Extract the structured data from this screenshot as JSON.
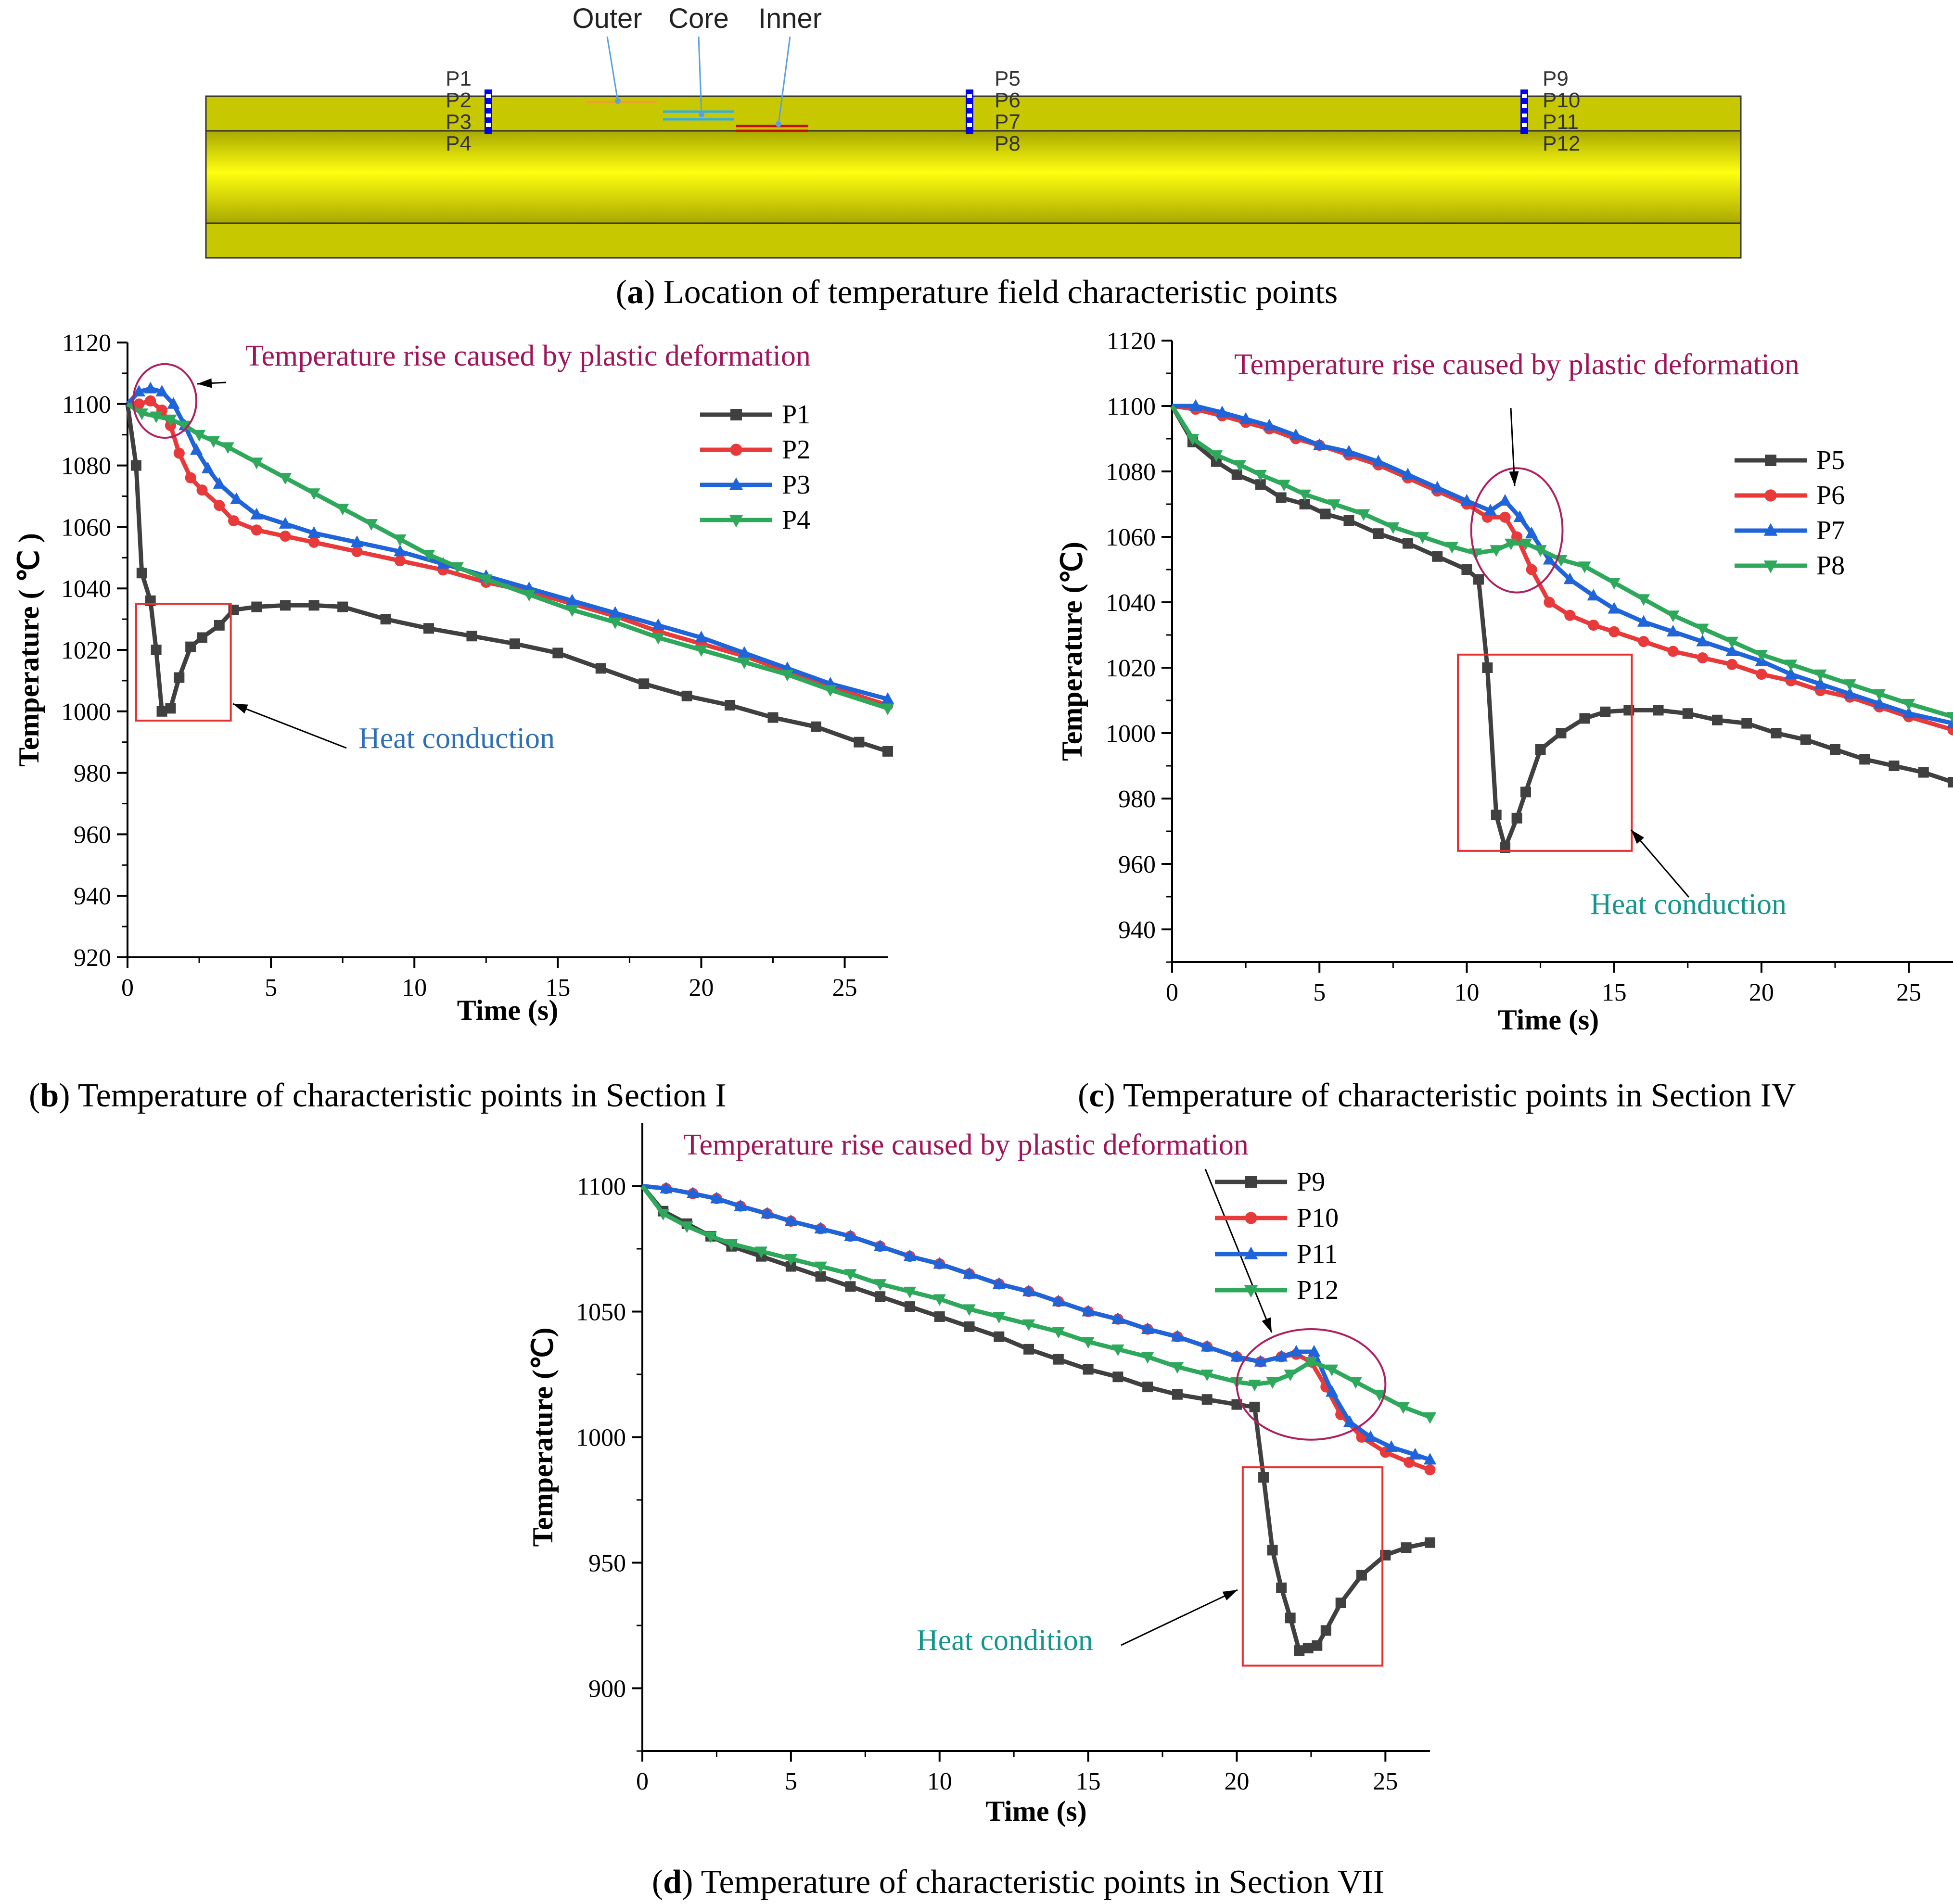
{
  "panel_a": {
    "caption_letter": "a",
    "caption_text": "Location of temperature field characteristic points",
    "layer_labels": [
      "Outer",
      "Core",
      "Inner"
    ],
    "points": [
      {
        "group": 0,
        "labels": [
          "P1",
          "P2",
          "P3",
          "P4"
        ]
      },
      {
        "group": 1,
        "labels": [
          "P5",
          "P6",
          "P7",
          "P8"
        ]
      },
      {
        "group": 2,
        "labels": [
          "P9",
          "P10",
          "P11",
          "P12"
        ]
      }
    ],
    "colors": {
      "billet_light": "#fefe10",
      "billet_dark": "#a9a900",
      "outer": "#f0a030",
      "core": "#30b0e0",
      "inner": "#c01010",
      "point": "#0000ee"
    }
  },
  "chart_data": [
    {
      "id": "b",
      "type": "line",
      "caption_letter": "b",
      "caption_text": "Temperature of characteristic points in Section I",
      "xlabel": "Time (s)",
      "ylabel": "Temperature ( ℃ )",
      "xlim": [
        0,
        26.5
      ],
      "ylim": [
        920,
        1120
      ],
      "xticks": [
        0,
        5,
        10,
        15,
        20,
        25
      ],
      "yticks": [
        920,
        940,
        960,
        980,
        1000,
        1020,
        1040,
        1060,
        1080,
        1100,
        1120
      ],
      "grid": false,
      "legend_position": "top-right",
      "series": [
        {
          "name": "P1",
          "color": "#404040",
          "marker": "square",
          "x": [
            0,
            0.3,
            0.5,
            0.8,
            1.0,
            1.2,
            1.5,
            1.8,
            2.2,
            2.6,
            3.2,
            3.7,
            4.5,
            5.5,
            6.5,
            7.5,
            9,
            10.5,
            12,
            13.5,
            15,
            16.5,
            18,
            19.5,
            21,
            22.5,
            24,
            25.5,
            26.5
          ],
          "y": [
            1100,
            1080,
            1045,
            1036,
            1020,
            1000,
            1001,
            1011,
            1021,
            1024,
            1028,
            1033,
            1034,
            1034.5,
            1034.5,
            1034,
            1030,
            1027,
            1024.5,
            1022,
            1019,
            1014,
            1009,
            1005,
            1002,
            998,
            995,
            990,
            987
          ]
        },
        {
          "name": "P2",
          "color": "#e83a3a",
          "marker": "circle",
          "x": [
            0,
            0.4,
            0.8,
            1.2,
            1.5,
            1.8,
            2.2,
            2.6,
            3.2,
            3.7,
            4.5,
            5.5,
            6.5,
            8,
            9.5,
            11,
            12.5,
            14,
            15.5,
            17,
            18.5,
            20,
            21.5,
            23,
            24.5,
            26.5
          ],
          "y": [
            1100,
            1100,
            1101,
            1098,
            1093,
            1084,
            1076,
            1072,
            1067,
            1062,
            1059,
            1057,
            1055,
            1052,
            1049,
            1046,
            1042,
            1039,
            1035,
            1031,
            1026,
            1022,
            1018,
            1013,
            1008,
            1002
          ]
        },
        {
          "name": "P3",
          "color": "#1f64d9",
          "marker": "triangle-up",
          "x": [
            0,
            0.4,
            0.8,
            1.2,
            1.6,
            2.0,
            2.4,
            2.8,
            3.2,
            3.8,
            4.5,
            5.5,
            6.5,
            8,
            9.5,
            11,
            12.5,
            14,
            15.5,
            17,
            18.5,
            20,
            21.5,
            23,
            24.5,
            26.5
          ],
          "y": [
            1100,
            1104,
            1105,
            1104,
            1100,
            1093,
            1085,
            1079,
            1074,
            1069,
            1064,
            1061,
            1058,
            1055,
            1052,
            1048,
            1044,
            1040,
            1036,
            1032,
            1028,
            1024,
            1019,
            1014,
            1009,
            1004
          ]
        },
        {
          "name": "P4",
          "color": "#2ea85a",
          "marker": "triangle-down",
          "x": [
            0,
            0.5,
            1.0,
            1.5,
            2.0,
            2.5,
            3.0,
            3.5,
            4.5,
            5.5,
            6.5,
            7.5,
            8.5,
            9.5,
            10.5,
            11.5,
            12.5,
            14,
            15.5,
            17,
            18.5,
            20,
            21.5,
            23,
            24.5,
            26.5
          ],
          "y": [
            1100,
            1097,
            1096,
            1095,
            1093,
            1090,
            1088,
            1086,
            1081,
            1076,
            1071,
            1066,
            1061,
            1056,
            1051,
            1047,
            1043,
            1038,
            1033,
            1029,
            1024,
            1020,
            1016,
            1012,
            1007,
            1001
          ]
        }
      ],
      "annotations": [
        {
          "text": "Temperature rise caused by plastic deformation",
          "color": "#a0145a",
          "shape": "ellipse",
          "cx": 1.3,
          "cy": 1101,
          "rx": 1.1,
          "ry": 12
        },
        {
          "text": "Heat conduction",
          "color": "#2f6fb8",
          "shape": "rect",
          "x0": 0.3,
          "x1": 3.6,
          "y0": 997,
          "y1": 1035
        }
      ]
    },
    {
      "id": "c",
      "type": "line",
      "caption_letter": "c",
      "caption_text": "Temperature of characteristic points in Section IV",
      "xlabel": "Time (s)",
      "ylabel": "Temperature (℃)",
      "xlim": [
        0,
        26.5
      ],
      "ylim": [
        930,
        1120
      ],
      "xticks": [
        0,
        5,
        10,
        15,
        20,
        25
      ],
      "yticks": [
        940,
        960,
        980,
        1000,
        1020,
        1040,
        1060,
        1080,
        1100,
        1120
      ],
      "grid": false,
      "legend_position": "top-right",
      "series": [
        {
          "name": "P5",
          "color": "#404040",
          "marker": "square",
          "x": [
            0,
            0.7,
            1.5,
            2.2,
            3,
            3.7,
            4.5,
            5.2,
            6,
            7,
            8,
            9,
            10,
            10.4,
            10.7,
            11.0,
            11.3,
            11.7,
            12,
            12.5,
            13.2,
            14,
            14.7,
            15.5,
            16.5,
            17.5,
            18.5,
            19.5,
            20.5,
            21.5,
            22.5,
            23.5,
            24.5,
            25.5,
            26.5
          ],
          "y": [
            1100,
            1089,
            1083,
            1079,
            1076,
            1072,
            1070,
            1067,
            1065,
            1061,
            1058,
            1054,
            1050,
            1047,
            1020,
            975,
            965,
            974,
            982,
            995,
            1000,
            1004.5,
            1006.5,
            1007,
            1007,
            1006,
            1004,
            1003,
            1000,
            998,
            995,
            992,
            990,
            988,
            985
          ]
        },
        {
          "name": "P6",
          "color": "#e83a3a",
          "marker": "circle",
          "x": [
            0,
            0.8,
            1.7,
            2.5,
            3.3,
            4.2,
            5,
            6,
            7,
            8,
            9,
            10,
            10.7,
            11.3,
            11.7,
            12.2,
            12.8,
            13.5,
            14.3,
            15,
            16,
            17,
            18,
            19,
            20,
            21,
            22,
            23,
            24,
            25,
            26.5
          ],
          "y": [
            1100,
            1099,
            1097,
            1095,
            1093,
            1090,
            1088,
            1085,
            1082,
            1078,
            1074,
            1070,
            1066,
            1066,
            1060,
            1050,
            1040,
            1036,
            1033,
            1031,
            1028,
            1025,
            1023,
            1021,
            1018,
            1016,
            1013,
            1011,
            1008,
            1005,
            1001
          ]
        },
        {
          "name": "P7",
          "color": "#1f64d9",
          "marker": "triangle-up",
          "x": [
            0,
            0.8,
            1.7,
            2.5,
            3.3,
            4.2,
            5,
            6,
            7,
            8,
            9,
            10,
            10.8,
            11.3,
            11.8,
            12.2,
            12.8,
            13.5,
            14.3,
            15,
            16,
            17,
            18,
            19,
            20,
            21,
            22,
            23,
            24,
            25,
            26.5
          ],
          "y": [
            1100,
            1100,
            1098,
            1096,
            1094,
            1091,
            1088,
            1086,
            1083,
            1079,
            1075,
            1071,
            1068,
            1071,
            1066,
            1061,
            1053,
            1047,
            1042,
            1038,
            1034,
            1031,
            1028,
            1025,
            1022,
            1018,
            1015,
            1012,
            1009,
            1006,
            1003
          ]
        },
        {
          "name": "P8",
          "color": "#2ea85a",
          "marker": "triangle-down",
          "x": [
            0,
            0.7,
            1.5,
            2.3,
            3,
            3.8,
            4.5,
            5.5,
            6.5,
            7.5,
            8.5,
            9.5,
            10.3,
            11,
            11.5,
            12,
            12.5,
            13.2,
            14,
            15,
            16,
            17,
            18,
            19,
            20,
            21,
            22,
            23,
            24,
            25,
            26.5
          ],
          "y": [
            1100,
            1090,
            1085,
            1082,
            1079,
            1076,
            1073,
            1070,
            1067,
            1063,
            1060,
            1057,
            1055,
            1056,
            1058,
            1058,
            1056,
            1053,
            1051,
            1046,
            1041,
            1036,
            1032,
            1028,
            1024,
            1021,
            1018,
            1015,
            1012,
            1009,
            1005
          ]
        }
      ],
      "annotations": [
        {
          "text": "Temperature rise caused by plastic deformation",
          "color": "#a0145a",
          "shape": "ellipse",
          "cx": 11.7,
          "cy": 1062,
          "rx": 1.55,
          "ry": 19
        },
        {
          "text": "Heat conduction",
          "color": "#14968a",
          "shape": "rect",
          "x0": 9.7,
          "x1": 15.6,
          "y0": 964,
          "y1": 1024
        }
      ]
    },
    {
      "id": "d",
      "type": "line",
      "caption_letter": "d",
      "caption_text": "Temperature of characteristic points in Section VII",
      "xlabel": "Time (s)",
      "ylabel": "Temperature (℃)",
      "xlim": [
        0,
        26.5
      ],
      "ylim": [
        875,
        1125
      ],
      "xticks": [
        0,
        5,
        10,
        15,
        20,
        25
      ],
      "yticks": [
        900,
        950,
        1000,
        1050,
        1100
      ],
      "grid": false,
      "legend_position": "top-right",
      "series": [
        {
          "name": "P9",
          "color": "#404040",
          "marker": "square",
          "x": [
            0,
            0.7,
            1.5,
            2.3,
            3,
            4,
            5,
            6,
            7,
            8,
            9,
            10,
            11,
            12,
            13,
            14,
            15,
            16,
            17,
            18,
            19,
            20,
            20.6,
            20.9,
            21.2,
            21.5,
            21.8,
            22.1,
            22.4,
            22.7,
            23.0,
            23.5,
            24.2,
            25,
            25.7,
            26.5
          ],
          "y": [
            1100,
            1090,
            1085,
            1080,
            1076,
            1072,
            1068,
            1064,
            1060,
            1056,
            1052,
            1048,
            1044,
            1040,
            1035,
            1031,
            1027,
            1024,
            1020,
            1017,
            1015,
            1013,
            1012,
            984,
            955,
            940,
            928,
            915,
            916,
            917,
            923,
            934,
            945,
            953,
            956,
            958
          ]
        },
        {
          "name": "P10",
          "color": "#e83a3a",
          "marker": "circle",
          "x": [
            0,
            0.8,
            1.7,
            2.5,
            3.3,
            4.2,
            5,
            6,
            7,
            8,
            9,
            10,
            11,
            12,
            13,
            14,
            15,
            16,
            17,
            18,
            19,
            20,
            20.8,
            21.5,
            22,
            22.5,
            23,
            23.5,
            24.2,
            25,
            25.8,
            26.5
          ],
          "y": [
            1100,
            1099,
            1097,
            1095,
            1092,
            1089,
            1086,
            1083,
            1080,
            1076,
            1072,
            1069,
            1065,
            1061,
            1058,
            1054,
            1050,
            1047,
            1043,
            1040,
            1036,
            1032,
            1030,
            1032,
            1033,
            1030,
            1020,
            1009,
            1000,
            994,
            990,
            987
          ]
        },
        {
          "name": "P11",
          "color": "#1f64d9",
          "marker": "triangle-up",
          "x": [
            0,
            0.8,
            1.7,
            2.5,
            3.3,
            4.2,
            5,
            6,
            7,
            8,
            9,
            10,
            11,
            12,
            13,
            14,
            15,
            16,
            17,
            18,
            19,
            20,
            20.8,
            21.5,
            22,
            22.6,
            23.2,
            23.8,
            24.5,
            25.2,
            26,
            26.5
          ],
          "y": [
            1100,
            1099,
            1097,
            1095,
            1092,
            1089,
            1086,
            1083,
            1080,
            1076,
            1072,
            1069,
            1065,
            1061,
            1058,
            1054,
            1050,
            1047,
            1043,
            1040,
            1036,
            1032,
            1030,
            1032,
            1034,
            1034,
            1018,
            1006,
            1000,
            996,
            993,
            991
          ]
        },
        {
          "name": "P12",
          "color": "#2ea85a",
          "marker": "triangle-down",
          "x": [
            0,
            0.7,
            1.5,
            2.3,
            3,
            4,
            5,
            6,
            7,
            8,
            9,
            10,
            11,
            12,
            13,
            14,
            15,
            16,
            17,
            18,
            19,
            20,
            20.6,
            21.2,
            21.8,
            22.5,
            23.2,
            24,
            24.8,
            25.6,
            26.5
          ],
          "y": [
            1100,
            1089,
            1084,
            1080,
            1077,
            1074,
            1071,
            1068,
            1065,
            1061,
            1058,
            1055,
            1051,
            1048,
            1045,
            1042,
            1038,
            1035,
            1032,
            1028,
            1025,
            1022,
            1021,
            1022,
            1025,
            1030,
            1027,
            1022,
            1017,
            1012,
            1008
          ]
        }
      ],
      "annotations": [
        {
          "text": "Temperature rise caused by plastic deformation",
          "color": "#a0145a",
          "shape": "ellipse",
          "cx": 22.5,
          "cy": 1021,
          "rx": 2.5,
          "ry": 22
        },
        {
          "text": "Heat condition",
          "color": "#14968a",
          "shape": "rect",
          "x0": 20.2,
          "x1": 24.9,
          "y0": 909,
          "y1": 988
        }
      ]
    }
  ]
}
